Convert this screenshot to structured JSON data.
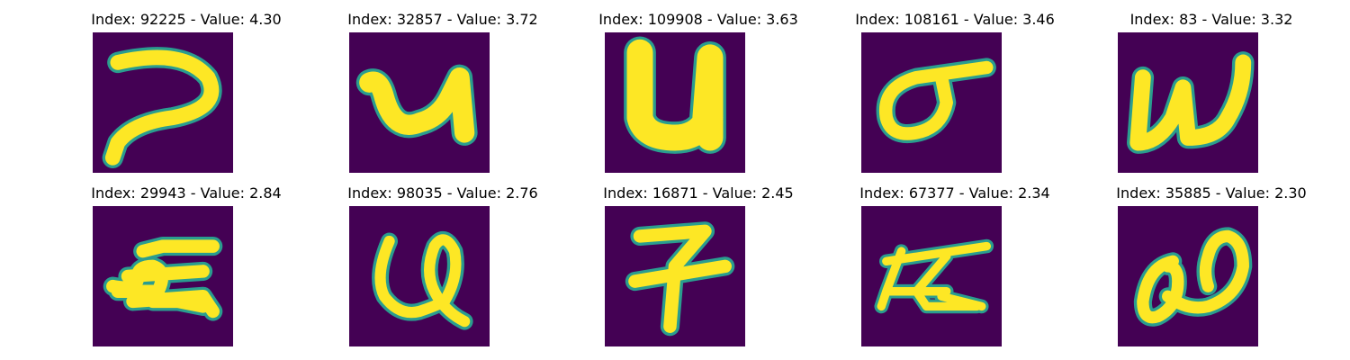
{
  "colormap": {
    "background": "#440154",
    "stroke_core": "#fde725",
    "stroke_edge_light": "#9fda3a",
    "stroke_edge": "#2a9d8f",
    "stroke_outer": "#31688e"
  },
  "panels": [
    {
      "title": "Index: 92225 - Value: 4.30",
      "glyph": "hooked-stroke"
    },
    {
      "title": "Index: 32857 - Value: 3.72",
      "glyph": "u-shape-bold"
    },
    {
      "title": "Index: 109908 - Value: 3.63",
      "glyph": "u-shape-thick"
    },
    {
      "title": "Index: 108161 - Value: 3.46",
      "glyph": "sigma-shape"
    },
    {
      "title": "Index: 83 - Value: 3.32",
      "glyph": "w-shape"
    },
    {
      "title": "Index: 29943 - Value: 2.84",
      "glyph": "tangled-stroke"
    },
    {
      "title": "Index: 98035 - Value: 2.76",
      "glyph": "looped-u-shape"
    },
    {
      "title": "Index: 16871 - Value: 2.45",
      "glyph": "seven-shape"
    },
    {
      "title": "Index: 67377 - Value: 2.34",
      "glyph": "crossed-strokes"
    },
    {
      "title": "Index: 35885 - Value: 2.30",
      "glyph": "loop-shape"
    }
  ]
}
